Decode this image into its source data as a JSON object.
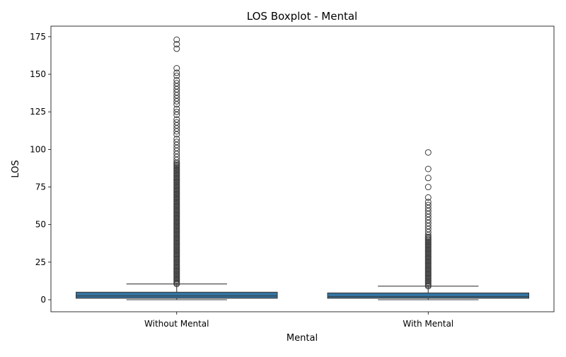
{
  "chart_data": {
    "type": "boxplot",
    "title": "LOS Boxplot - Mental",
    "xlabel": "Mental",
    "ylabel": "LOS",
    "ylim": [
      -8,
      182
    ],
    "yticks": [
      0,
      25,
      50,
      75,
      100,
      125,
      150,
      175
    ],
    "grid": false,
    "legend": "none",
    "box_color": "#3274a1",
    "edge_color": "#3b3b3b",
    "categories": [
      "Without Mental",
      "With Mental"
    ],
    "boxes": [
      {
        "category": "Without Mental",
        "whisker_low": 0,
        "q1": 1,
        "median": 2.5,
        "q3": 5,
        "whisker_high": 10.5,
        "outlier_dense_range": [
          10.5,
          92
        ],
        "outliers": [
          93,
          95,
          97,
          99,
          101,
          103,
          105,
          107,
          110,
          112,
          114,
          116,
          118,
          120,
          123,
          125,
          127,
          130,
          132,
          134,
          136,
          138,
          140,
          142,
          144,
          146,
          149,
          151,
          154,
          167,
          170,
          173
        ]
      },
      {
        "category": "With Mental",
        "whisker_low": 0,
        "q1": 1,
        "median": 2,
        "q3": 4.5,
        "whisker_high": 9,
        "outlier_dense_range": [
          9,
          42
        ],
        "outliers": [
          43,
          45,
          47,
          49,
          51,
          53,
          55,
          57,
          59,
          61,
          63,
          65,
          68,
          75,
          81,
          87,
          98
        ]
      }
    ]
  }
}
